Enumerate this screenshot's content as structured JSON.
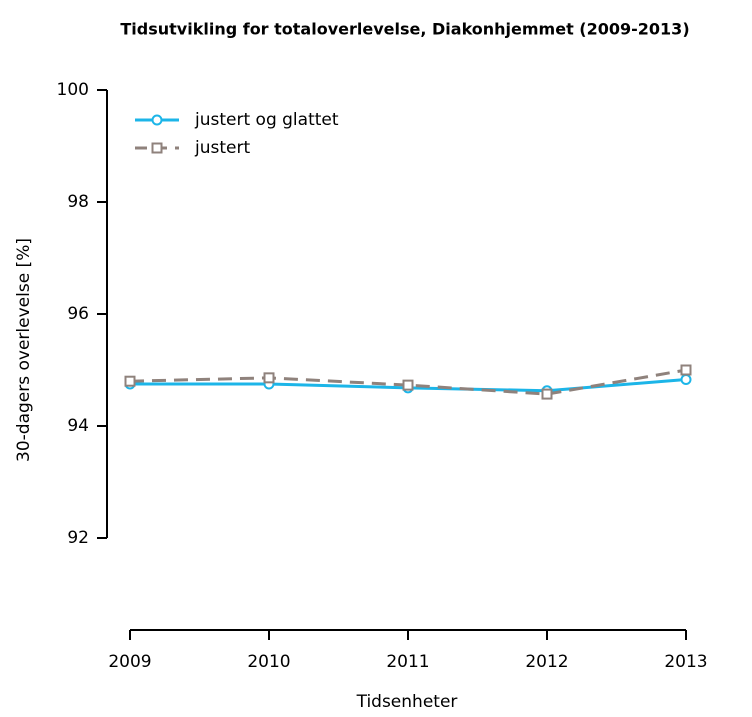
{
  "chart_data": {
    "type": "line",
    "title": "Tidsutvikling for totaloverlevelse, Diakonhjemmet (2009-2013)",
    "x_label": "Tidsenheter",
    "y_label": "30-dagers overlevelse [%]",
    "x": [
      2009,
      2010,
      2011,
      2012,
      2013
    ],
    "xlim": [
      2009,
      2013
    ],
    "xticks": [
      2009,
      2010,
      2011,
      2012,
      2013
    ],
    "ylim": [
      90.4,
      100
    ],
    "yticks": [
      92,
      94,
      96,
      98,
      100
    ],
    "legend": "top-left",
    "series": [
      {
        "name": "justert og glattet",
        "color": "#1cb5e8",
        "marker": "circle",
        "linestyle": "solid",
        "values": [
          94.75,
          94.75,
          94.68,
          94.63,
          94.83
        ]
      },
      {
        "name": "justert",
        "color": "#8f827c",
        "marker": "square",
        "linestyle": "dashed",
        "values": [
          94.8,
          94.86,
          94.73,
          94.57,
          95.0
        ]
      }
    ]
  }
}
